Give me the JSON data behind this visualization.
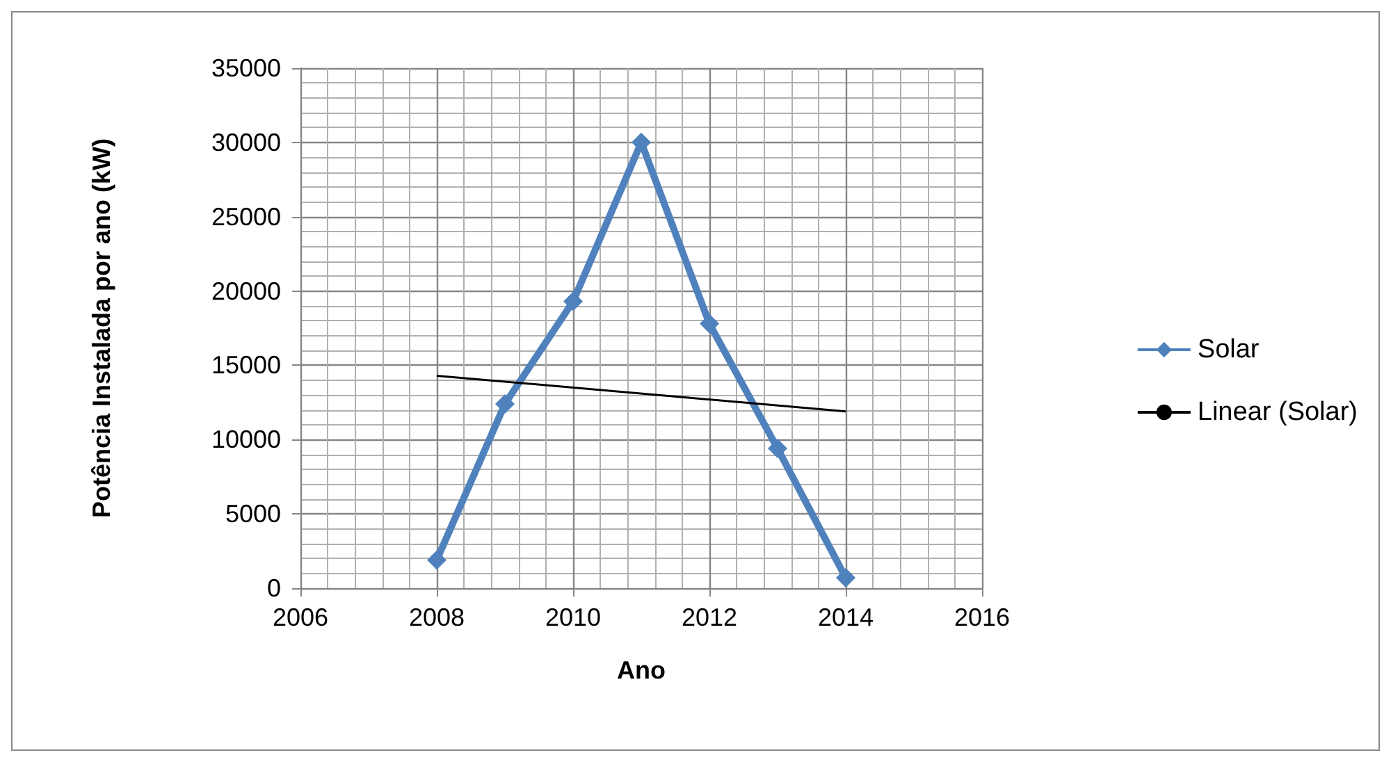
{
  "chart_data": {
    "type": "line",
    "xlabel": "Ano",
    "ylabel": "Potência Instalada por ano (kW)",
    "xlim": [
      2006,
      2016
    ],
    "xticks": [
      2006,
      2008,
      2010,
      2012,
      2014,
      2016
    ],
    "ylim": [
      0,
      35000
    ],
    "yticks": [
      0,
      5000,
      10000,
      15000,
      20000,
      25000,
      30000,
      35000
    ],
    "grid": true,
    "legend": "right",
    "marker": "diamond",
    "series": [
      {
        "name": "Solar",
        "color": "#4f81bd",
        "x": [
          2008,
          2009,
          2010,
          2011,
          2012,
          2013,
          2014
        ],
        "values": [
          1900,
          12400,
          19300,
          30000,
          17800,
          9400,
          700
        ]
      },
      {
        "name": "Linear (Solar)",
        "color": "#000000",
        "marker": "none",
        "x": [
          2008,
          2014
        ],
        "values": [
          14300,
          11900
        ]
      }
    ]
  }
}
